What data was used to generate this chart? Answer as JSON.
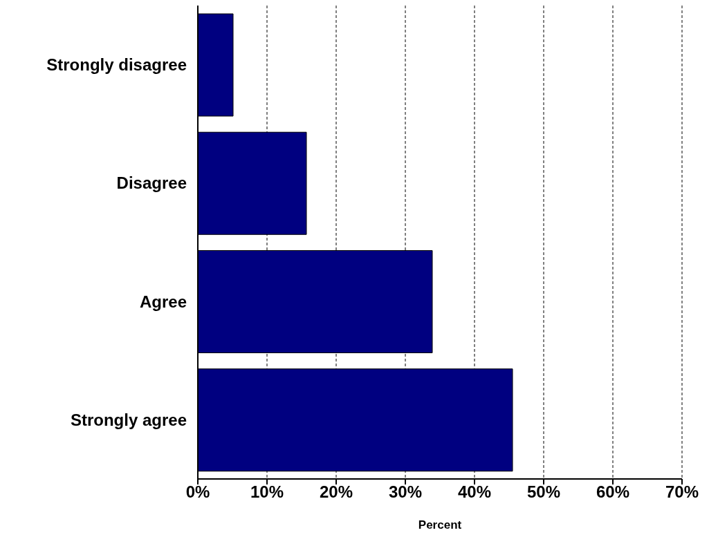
{
  "chart_data": {
    "type": "bar",
    "orientation": "horizontal",
    "xlabel": "Percent",
    "categories": [
      "Strongly disagree",
      "Disagree",
      "Agree",
      "Strongly agree"
    ],
    "values": [
      5.1,
      15.7,
      33.9,
      45.5
    ],
    "color": "#000080",
    "xlim": [
      0,
      70
    ],
    "xticks": [
      {
        "value": 0,
        "label": "0%"
      },
      {
        "value": 10,
        "label": "10%"
      },
      {
        "value": 20,
        "label": "20%"
      },
      {
        "value": 30,
        "label": "30%"
      },
      {
        "value": 40,
        "label": "40%"
      },
      {
        "value": 50,
        "label": "50%"
      },
      {
        "value": 60,
        "label": "60%"
      },
      {
        "value": 70,
        "label": "70%"
      }
    ],
    "grid": "x"
  }
}
